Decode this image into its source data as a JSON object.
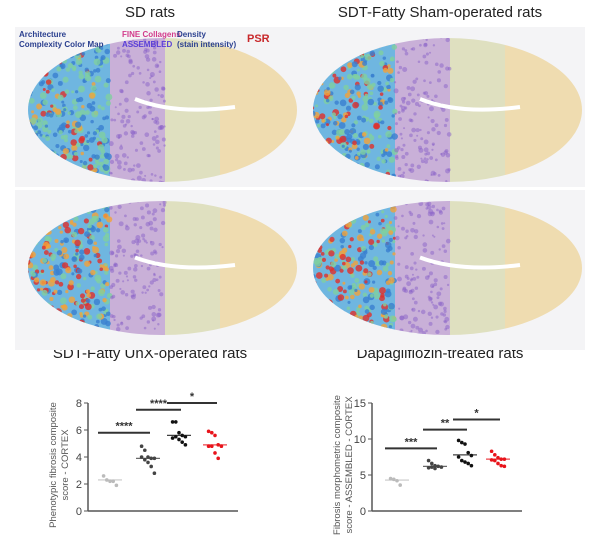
{
  "panels": [
    {
      "title": "SD rats"
    },
    {
      "title": "SDT-Fatty Sham-operated rats"
    },
    {
      "title": "SDT-Fatty UnX-operated rats"
    },
    {
      "title": "Dapagliflozin-treated rats"
    }
  ],
  "overlay_labels": {
    "architecture": "Architecture",
    "complexity": "Complexity Color Map",
    "fine_collagens": "FINE Collagens",
    "assembled": "ASSEMBLED",
    "density": "Density",
    "stain": "(stain intensity)",
    "psr": "PSR"
  },
  "colors": {
    "control": "#bbbbbb",
    "sham": "#444444",
    "unx": "#111111",
    "dapa": "#e8141b"
  },
  "chart_data": [
    {
      "type": "scatter",
      "ylabel": "Phenotypic fibrosis composite score - CORTEX",
      "ylim": [
        0,
        8
      ],
      "yticks": [
        "0",
        "2",
        "4",
        "6",
        "8"
      ],
      "groups": [
        {
          "color": "#bbbbbb",
          "mean": 2.3,
          "values": [
            2.6,
            2.3,
            2.2,
            2.2,
            1.9
          ]
        },
        {
          "color": "#444444",
          "mean": 3.9,
          "values": [
            4.8,
            4.5,
            4.0,
            3.9,
            3.9,
            4.0,
            3.8,
            3.6,
            3.3,
            2.8
          ]
        },
        {
          "color": "#111111",
          "mean": 5.6,
          "values": [
            6.6,
            6.6,
            5.8,
            5.6,
            5.5,
            5.4,
            5.5,
            5.3,
            5.1,
            4.9
          ]
        },
        {
          "color": "#e8141b",
          "mean": 4.9,
          "values": [
            5.9,
            5.8,
            5.6,
            4.9,
            4.8,
            4.8,
            4.8,
            4.3,
            3.9
          ]
        }
      ],
      "significance": [
        {
          "from": 0,
          "to": 1,
          "label": "****",
          "y": 5.8
        },
        {
          "from": 1,
          "to": 2,
          "label": "****",
          "y": 7.5
        },
        {
          "from": 2,
          "to": 3,
          "label": "*",
          "y": 8.0
        }
      ]
    },
    {
      "type": "scatter",
      "ylabel": "Fibrosis morphometric composite score - ASSEMBLED - CORTEX",
      "ylim": [
        0,
        15
      ],
      "yticks": [
        "0",
        "5",
        "10",
        "15"
      ],
      "groups": [
        {
          "color": "#bbbbbb",
          "mean": 4.3,
          "values": [
            4.5,
            4.4,
            4.2,
            3.6
          ]
        },
        {
          "color": "#444444",
          "mean": 6.2,
          "values": [
            7.0,
            6.6,
            6.3,
            6.2,
            6.1,
            6.0,
            6.1,
            5.9
          ]
        },
        {
          "color": "#111111",
          "mean": 7.8,
          "values": [
            9.8,
            9.5,
            9.3,
            8.1,
            7.7,
            7.5,
            7.0,
            6.8,
            6.6,
            6.3
          ]
        },
        {
          "color": "#e8141b",
          "mean": 7.2,
          "values": [
            8.3,
            7.8,
            7.4,
            7.2,
            7.2,
            7.1,
            7.0,
            6.6,
            6.3,
            6.2
          ]
        }
      ],
      "significance": [
        {
          "from": 0,
          "to": 1,
          "label": "***",
          "y": 8.7
        },
        {
          "from": 1,
          "to": 2,
          "label": "**",
          "y": 11.3
        },
        {
          "from": 2,
          "to": 3,
          "label": "*",
          "y": 12.7
        }
      ]
    }
  ]
}
